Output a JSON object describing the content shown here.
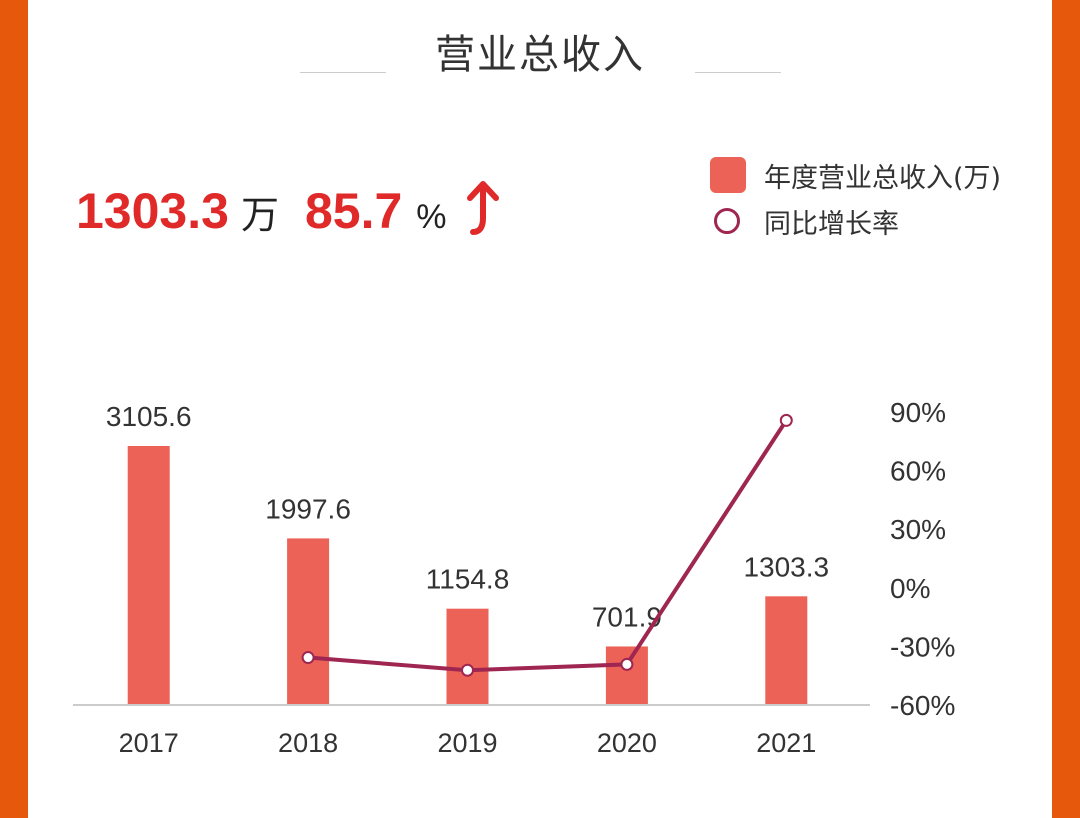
{
  "header": {
    "title": "营业总收入"
  },
  "summary": {
    "value": "1303.3",
    "unit": "万",
    "growth": "85.7",
    "growth_unit": "%",
    "trend_icon": "arrow-up-icon"
  },
  "colors": {
    "frame": "#E6580B",
    "bar": "#EC6257",
    "line": "#9E2650",
    "highlight": "#E02A2A"
  },
  "chart_data": {
    "type": "bar+line",
    "categories": [
      "2017",
      "2018",
      "2019",
      "2020",
      "2021"
    ],
    "series": [
      {
        "name": "年度营业总收入(万)",
        "type": "bar",
        "axis": "left",
        "values": [
          3105.6,
          1997.6,
          1154.8,
          701.9,
          1303.3
        ],
        "labels": [
          "3105.6",
          "1997.6",
          "1154.8",
          "701.9",
          "1303.3"
        ]
      },
      {
        "name": "同比增长率",
        "type": "line",
        "axis": "right",
        "values": [
          null,
          -35.7,
          -42.2,
          -39.2,
          85.7
        ]
      }
    ],
    "y_left": {
      "visible": false
    },
    "y_right": {
      "range": [
        -60,
        90
      ],
      "ticks": [
        "90%",
        "60%",
        "30%",
        "0%",
        "-30%",
        "-60%"
      ],
      "tick_values": [
        90,
        60,
        30,
        0,
        -30,
        -60
      ]
    },
    "grid": false,
    "legend": "top-right"
  }
}
